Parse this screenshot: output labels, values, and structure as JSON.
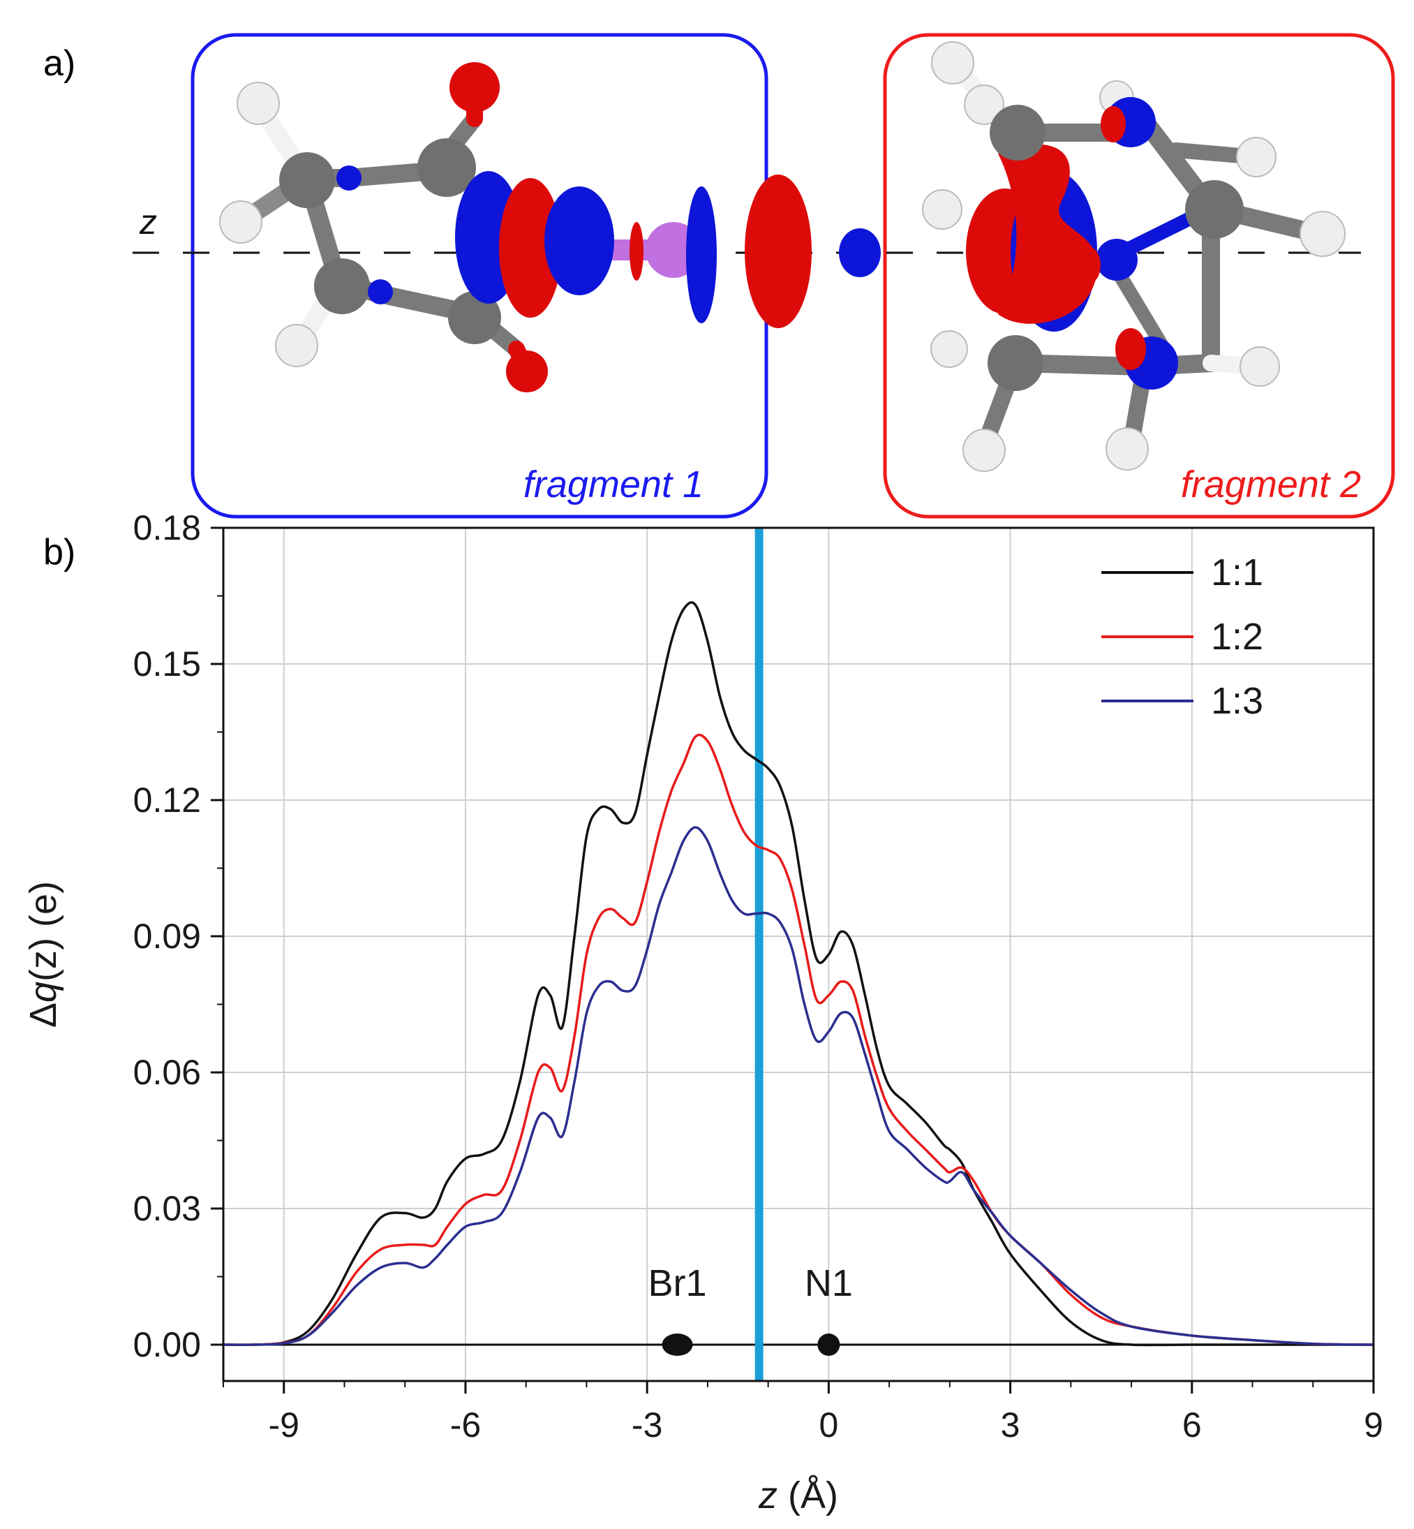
{
  "panel_a": {
    "label": "a)",
    "axis_label": "z",
    "fragments": [
      {
        "label": "fragment 1",
        "color": "#1a1af0"
      },
      {
        "label": "fragment 2",
        "color": "#ee1c1c"
      }
    ],
    "colors": {
      "density_positive": "#dd0a0a",
      "density_negative": "#0d16d8",
      "carbon": "#707070",
      "hydrogen": "#f2f2f2",
      "bromine": "#c070e0"
    }
  },
  "panel_b": {
    "label": "b)"
  },
  "chart_data": {
    "type": "line",
    "xlabel_italic": "z",
    "xlabel_unit": " (Å)",
    "ylabel_prefix": "Δ",
    "ylabel_italic": "q",
    "ylabel_suffix": "(z) (e)",
    "xlim": [
      -10,
      9
    ],
    "ylim": [
      -0.008,
      0.18
    ],
    "xticks": [
      -9,
      -6,
      -3,
      0,
      3,
      6,
      9
    ],
    "yticks": [
      0.0,
      0.03,
      0.06,
      0.09,
      0.12,
      0.15,
      0.18
    ],
    "ytick_labels": [
      "0.00",
      "0.03",
      "0.06",
      "0.09",
      "0.12",
      "0.15",
      "0.18"
    ],
    "grid": true,
    "legend_position": "top-right",
    "vertical_line": {
      "x": -1.15,
      "color": "#1a9fd8"
    },
    "atoms": [
      {
        "label": "Br1",
        "x": -2.5
      },
      {
        "label": "N1",
        "x": 0.0
      }
    ],
    "series": [
      {
        "name": "1:1",
        "color": "#111111",
        "x": [
          -10,
          -9.5,
          -9,
          -8.6,
          -8.2,
          -7.8,
          -7.4,
          -7.0,
          -6.7,
          -6.5,
          -6.3,
          -6.0,
          -5.7,
          -5.4,
          -5.1,
          -4.8,
          -4.6,
          -4.4,
          -4.2,
          -4.0,
          -3.8,
          -3.6,
          -3.4,
          -3.2,
          -3.0,
          -2.8,
          -2.6,
          -2.4,
          -2.2,
          -2.0,
          -1.8,
          -1.6,
          -1.4,
          -1.2,
          -1.0,
          -0.8,
          -0.6,
          -0.4,
          -0.2,
          0.0,
          0.2,
          0.4,
          0.6,
          0.8,
          1.0,
          1.3,
          1.6,
          1.9,
          2.0,
          2.2,
          2.4,
          2.7,
          3.0,
          3.5,
          4.0,
          4.5,
          5.0,
          6.0,
          7.0,
          8.0,
          9.0
        ],
        "values": [
          0.0,
          0.0,
          0.0005,
          0.003,
          0.01,
          0.02,
          0.028,
          0.029,
          0.028,
          0.03,
          0.036,
          0.041,
          0.042,
          0.045,
          0.058,
          0.077,
          0.077,
          0.07,
          0.09,
          0.112,
          0.118,
          0.118,
          0.115,
          0.117,
          0.13,
          0.143,
          0.155,
          0.162,
          0.163,
          0.155,
          0.143,
          0.135,
          0.131,
          0.129,
          0.127,
          0.123,
          0.114,
          0.098,
          0.085,
          0.086,
          0.091,
          0.088,
          0.077,
          0.065,
          0.057,
          0.053,
          0.049,
          0.044,
          0.043,
          0.04,
          0.034,
          0.027,
          0.02,
          0.012,
          0.005,
          0.001,
          0.0,
          0.0,
          0.0,
          0.0,
          0.0
        ]
      },
      {
        "name": "1:2",
        "color": "#e81a1a",
        "x": [
          -10,
          -9.5,
          -9,
          -8.6,
          -8.2,
          -7.8,
          -7.4,
          -7.0,
          -6.7,
          -6.5,
          -6.3,
          -6.0,
          -5.7,
          -5.4,
          -5.1,
          -4.8,
          -4.6,
          -4.4,
          -4.2,
          -4.0,
          -3.8,
          -3.6,
          -3.4,
          -3.2,
          -3.0,
          -2.8,
          -2.6,
          -2.4,
          -2.2,
          -2.0,
          -1.8,
          -1.6,
          -1.4,
          -1.2,
          -1.0,
          -0.8,
          -0.6,
          -0.4,
          -0.2,
          0.0,
          0.2,
          0.4,
          0.6,
          0.8,
          1.0,
          1.3,
          1.6,
          1.9,
          2.0,
          2.2,
          2.4,
          2.7,
          3.0,
          3.5,
          4.0,
          4.5,
          5.0,
          6.0,
          7.0,
          8.0,
          9.0
        ],
        "values": [
          0.0,
          0.0,
          0.0004,
          0.002,
          0.008,
          0.016,
          0.021,
          0.022,
          0.022,
          0.022,
          0.026,
          0.031,
          0.033,
          0.034,
          0.045,
          0.06,
          0.061,
          0.056,
          0.068,
          0.086,
          0.094,
          0.096,
          0.094,
          0.093,
          0.102,
          0.113,
          0.122,
          0.128,
          0.134,
          0.133,
          0.127,
          0.119,
          0.113,
          0.11,
          0.109,
          0.107,
          0.1,
          0.088,
          0.076,
          0.077,
          0.08,
          0.078,
          0.068,
          0.059,
          0.052,
          0.047,
          0.043,
          0.039,
          0.038,
          0.039,
          0.036,
          0.029,
          0.024,
          0.018,
          0.011,
          0.006,
          0.004,
          0.002,
          0.001,
          0.0002,
          0.0
        ]
      },
      {
        "name": "1:3",
        "color": "#2b2f8f",
        "x": [
          -10,
          -9.5,
          -9,
          -8.6,
          -8.2,
          -7.8,
          -7.4,
          -7.0,
          -6.7,
          -6.5,
          -6.3,
          -6.0,
          -5.7,
          -5.4,
          -5.1,
          -4.8,
          -4.6,
          -4.4,
          -4.2,
          -4.0,
          -3.8,
          -3.6,
          -3.4,
          -3.2,
          -3.0,
          -2.8,
          -2.6,
          -2.4,
          -2.2,
          -2.0,
          -1.8,
          -1.6,
          -1.4,
          -1.2,
          -1.0,
          -0.8,
          -0.6,
          -0.4,
          -0.2,
          0.0,
          0.2,
          0.4,
          0.6,
          0.8,
          1.0,
          1.3,
          1.6,
          1.9,
          2.0,
          2.2,
          2.4,
          2.7,
          3.0,
          3.5,
          4.0,
          4.5,
          5.0,
          6.0,
          7.0,
          8.0,
          9.0
        ],
        "values": [
          0.0,
          0.0,
          0.0003,
          0.002,
          0.007,
          0.013,
          0.017,
          0.018,
          0.017,
          0.019,
          0.022,
          0.026,
          0.027,
          0.029,
          0.038,
          0.05,
          0.05,
          0.046,
          0.058,
          0.073,
          0.079,
          0.08,
          0.078,
          0.079,
          0.087,
          0.097,
          0.104,
          0.111,
          0.114,
          0.111,
          0.104,
          0.098,
          0.095,
          0.095,
          0.095,
          0.093,
          0.087,
          0.075,
          0.067,
          0.069,
          0.073,
          0.072,
          0.064,
          0.055,
          0.047,
          0.043,
          0.039,
          0.036,
          0.036,
          0.038,
          0.034,
          0.029,
          0.024,
          0.018,
          0.012,
          0.007,
          0.004,
          0.002,
          0.001,
          0.0002,
          0.0
        ]
      }
    ]
  }
}
